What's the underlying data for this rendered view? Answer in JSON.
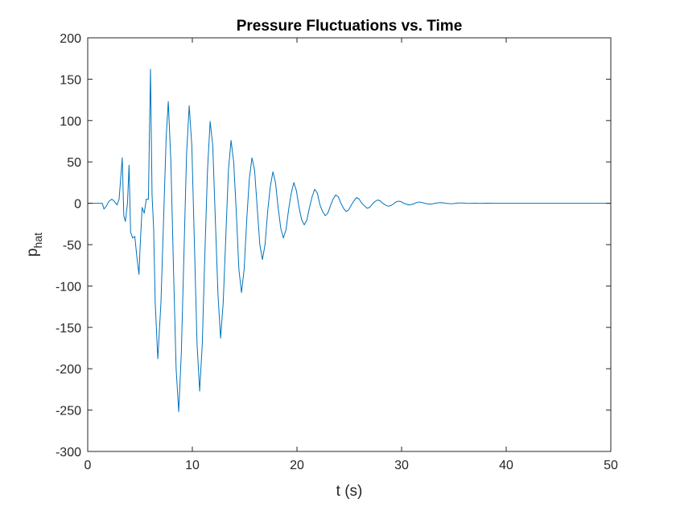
{
  "chart_data": {
    "type": "line",
    "title": "Pressure Fluctuations vs. Time",
    "xlabel": "t (s)",
    "ylabel_main": "p",
    "ylabel_sub": "hat",
    "xlim": [
      0,
      50
    ],
    "ylim": [
      -300,
      200
    ],
    "xticks": [
      0,
      10,
      20,
      30,
      40,
      50
    ],
    "yticks": [
      -300,
      -250,
      -200,
      -150,
      -100,
      -50,
      0,
      50,
      100,
      150,
      200
    ],
    "grid": false,
    "legend": "none",
    "series": [
      {
        "color": "#0072BD",
        "x": [
          0,
          1.4,
          1.55,
          1.8,
          2.0,
          2.3,
          2.5,
          2.8,
          3.0,
          3.3,
          3.45,
          3.6,
          3.8,
          3.95,
          4.1,
          4.3,
          4.5,
          4.7,
          4.9,
          5.0,
          5.2,
          5.4,
          5.6,
          5.8,
          6.0,
          6.15,
          6.3,
          6.45,
          6.7,
          7.0,
          7.25,
          7.5,
          7.7,
          7.95,
          8.2,
          8.45,
          8.7,
          8.95,
          9.2,
          9.45,
          9.7,
          9.95,
          10.2,
          10.45,
          10.7,
          10.95,
          11.2,
          11.45,
          11.7,
          11.95,
          12.2,
          12.45,
          12.7,
          12.95,
          13.2,
          13.45,
          13.7,
          13.95,
          14.2,
          14.45,
          14.7,
          14.95,
          15.2,
          15.45,
          15.7,
          15.95,
          16.2,
          16.45,
          16.7,
          16.95,
          17.2,
          17.45,
          17.7,
          17.95,
          18.2,
          18.45,
          18.7,
          18.95,
          19.2,
          19.45,
          19.7,
          19.95,
          20.2,
          20.45,
          20.7,
          20.95,
          21.2,
          21.45,
          21.7,
          21.95,
          22.2,
          22.45,
          22.7,
          22.95,
          23.2,
          23.45,
          23.7,
          23.95,
          24.2,
          24.45,
          24.7,
          24.95,
          25.2,
          25.45,
          25.7,
          25.95,
          26.2,
          26.45,
          26.7,
          26.95,
          27.2,
          27.45,
          27.7,
          27.95,
          28.2,
          28.45,
          28.7,
          28.95,
          29.2,
          29.45,
          29.7,
          29.95,
          30.2,
          30.45,
          30.7,
          30.95,
          31.2,
          31.45,
          31.7,
          31.95,
          32.2,
          32.45,
          32.7,
          32.95,
          33.2,
          33.45,
          33.7,
          33.95,
          34.2,
          34.45,
          34.7,
          34.95,
          35.2,
          35.45,
          35.7,
          35.95,
          36.2,
          36.5,
          37.0,
          37.5,
          38.0,
          39.0,
          40.0,
          42.0,
          45.0,
          50.0
        ],
        "y": [
          0,
          0,
          -7,
          -3,
          2,
          5,
          3,
          -2,
          5,
          55,
          -15,
          -22,
          0,
          46,
          -35,
          -42,
          -40,
          -65,
          -86,
          -55,
          -5,
          -12,
          5,
          5,
          162,
          10,
          -30,
          -120,
          -188,
          -120,
          -20,
          80,
          123,
          50,
          -80,
          -200,
          -252,
          -180,
          -60,
          60,
          118,
          70,
          -50,
          -170,
          -227,
          -170,
          -60,
          40,
          99,
          70,
          -20,
          -110,
          -163,
          -120,
          -40,
          40,
          76,
          50,
          -10,
          -80,
          -108,
          -80,
          -20,
          30,
          55,
          40,
          -5,
          -50,
          -68,
          -50,
          -10,
          20,
          38,
          25,
          -5,
          -30,
          -42,
          -32,
          -8,
          12,
          25,
          15,
          -5,
          -20,
          -26,
          -20,
          -5,
          8,
          17,
          12,
          -2,
          -10,
          -15,
          -12,
          -3,
          5,
          10,
          8,
          0,
          -6,
          -10,
          -8,
          -2,
          3,
          7,
          5,
          0,
          -3,
          -6,
          -5,
          -1,
          2,
          4,
          3,
          0,
          -2,
          -3.5,
          -3,
          -1,
          1.5,
          2.5,
          2,
          0,
          -1,
          -2,
          -1.5,
          -0.5,
          1,
          1.5,
          1,
          0,
          -0.6,
          -1,
          -0.8,
          0,
          0.5,
          0.8,
          0.6,
          0,
          -0.3,
          -0.5,
          -0.4,
          0,
          0.3,
          0.4,
          0.3,
          0,
          -0.2,
          0.1,
          -0.1,
          0.05,
          0,
          0,
          0,
          0,
          0
        ]
      }
    ]
  }
}
